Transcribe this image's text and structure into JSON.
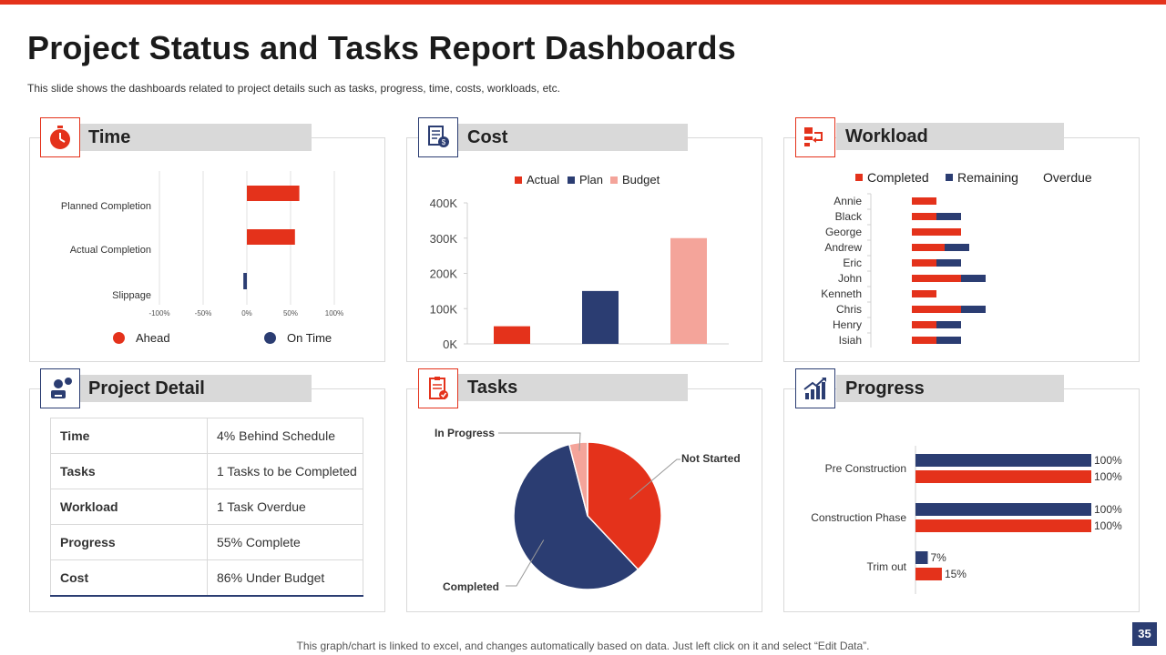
{
  "header": {
    "title": "Project Status and Tasks Report Dashboards",
    "subtitle": "This slide shows the dashboards related to project details such as tasks, progress, time, costs, workloads, etc."
  },
  "colors": {
    "red": "#e4321b",
    "navy": "#2b3d72",
    "pink": "#f4a49a",
    "grey": "#d9d9d9"
  },
  "panels": {
    "time": {
      "title": "Time",
      "icon": "stopwatch-icon"
    },
    "cost": {
      "title": "Cost",
      "icon": "invoice-icon"
    },
    "workload": {
      "title": "Workload",
      "icon": "workflow-icon"
    },
    "project_detail": {
      "title": "Project Detail",
      "icon": "worker-icon"
    },
    "tasks": {
      "title": "Tasks",
      "icon": "checklist-icon"
    },
    "progress": {
      "title": "Progress",
      "icon": "growth-chart-icon"
    }
  },
  "project_detail": {
    "rows": [
      {
        "label": "Time",
        "value": "4% Behind Schedule"
      },
      {
        "label": "Tasks",
        "value": "1 Tasks to be Completed"
      },
      {
        "label": "Workload",
        "value": "1 Task Overdue"
      },
      {
        "label": "Progress",
        "value": "55% Complete"
      },
      {
        "label": "Cost",
        "value": "86% Under Budget"
      }
    ]
  },
  "chart_data": [
    {
      "id": "time",
      "type": "bar",
      "orientation": "horizontal",
      "categories": [
        "Planned Completion",
        "Actual Completion",
        "Slippage"
      ],
      "values": [
        60,
        55,
        -4
      ],
      "value_colors": [
        "red",
        "red",
        "navy"
      ],
      "xlim": [
        -100,
        100
      ],
      "xticks": [
        "-100%",
        "-50%",
        "0%",
        "50%",
        "100%"
      ],
      "legend": [
        {
          "name": "Ahead",
          "color": "red"
        },
        {
          "name": "On Time",
          "color": "navy"
        }
      ],
      "legend_position": "bottom",
      "grid": true
    },
    {
      "id": "cost",
      "type": "bar",
      "orientation": "vertical",
      "categories": [
        "",
        "",
        ""
      ],
      "series": [
        {
          "name": "Actual",
          "values": [
            50000,
            0,
            0
          ],
          "color": "red"
        },
        {
          "name": "Plan",
          "values": [
            0,
            150000,
            0
          ],
          "color": "navy"
        },
        {
          "name": "Budget",
          "values": [
            0,
            0,
            300000
          ],
          "color": "pink"
        }
      ],
      "ylim": [
        0,
        400000
      ],
      "yticks": [
        "0K",
        "100K",
        "200K",
        "300K",
        "400K"
      ],
      "legend_position": "top"
    },
    {
      "id": "workload",
      "type": "bar",
      "orientation": "horizontal",
      "stacked": true,
      "categories": [
        "Annie",
        "Black",
        "George",
        "Andrew",
        "Eric",
        "John",
        "Kenneth",
        "Chris",
        "Henry",
        "Isiah"
      ],
      "series": [
        {
          "name": "Completed",
          "values": [
            3,
            3,
            6,
            4,
            3,
            6,
            3,
            6,
            3,
            3
          ],
          "color": "red"
        },
        {
          "name": "Remaining",
          "values": [
            0,
            3,
            0,
            3,
            3,
            3,
            0,
            3,
            3,
            3
          ],
          "color": "navy"
        },
        {
          "name": "Overdue",
          "values": [
            0,
            0,
            0,
            0,
            0,
            0,
            0,
            0,
            0,
            0
          ],
          "color": "none"
        }
      ],
      "legend_position": "top"
    },
    {
      "id": "tasks",
      "type": "pie",
      "slices": [
        {
          "name": "Not Started",
          "value": 38,
          "color": "red"
        },
        {
          "name": "Completed",
          "value": 58,
          "color": "navy"
        },
        {
          "name": "In Progress",
          "value": 4,
          "color": "pink"
        }
      ]
    },
    {
      "id": "progress",
      "type": "bar",
      "orientation": "horizontal",
      "categories": [
        "Pre Construction",
        "Construction Phase",
        "Trim out"
      ],
      "series": [
        {
          "values": [
            100,
            100,
            7
          ],
          "color": "navy"
        },
        {
          "values": [
            100,
            100,
            15
          ],
          "color": "red"
        }
      ],
      "data_labels": [
        [
          "100%",
          "100%",
          "7%"
        ],
        [
          "100%",
          "100%",
          "15%"
        ]
      ],
      "xlim": [
        0,
        100
      ]
    }
  ],
  "footer": {
    "note": "This graph/chart is linked to excel,  and changes automatically based on data. Just left click on it and select “Edit Data”.",
    "page_number": "35"
  }
}
